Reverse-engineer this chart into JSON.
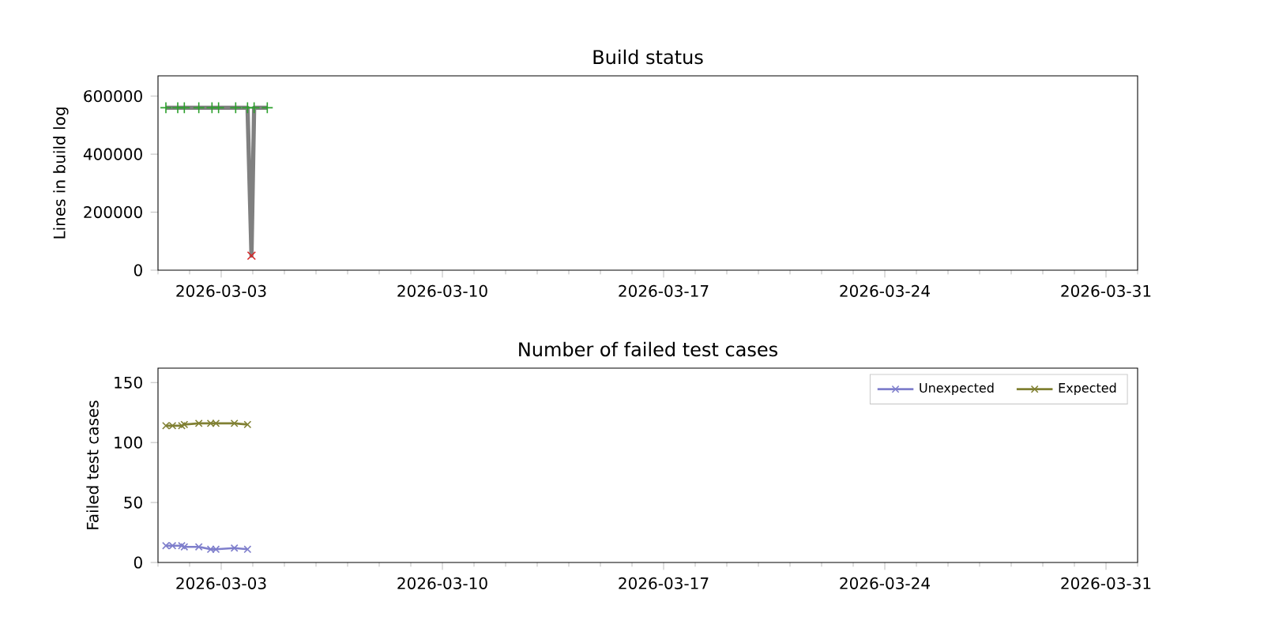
{
  "chart_data": [
    {
      "type": "line",
      "title": "Build status",
      "ylabel": "Lines in build log",
      "xlim": [
        "2026-03-01",
        "2026-04-01"
      ],
      "xticks": [
        "2026-03-03",
        "2026-03-10",
        "2026-03-17",
        "2026-03-24",
        "2026-03-31"
      ],
      "ylim": [
        0,
        670000
      ],
      "yticks": [
        0,
        200000,
        400000,
        600000
      ],
      "legend": false,
      "grid": false,
      "series": [
        {
          "color": "#808080",
          "marker": "none",
          "x": [
            "2026-03-01T06:00",
            "2026-03-01T15:00",
            "2026-03-01T20:00",
            "2026-03-02T07:00",
            "2026-03-02T17:00",
            "2026-03-02T22:00",
            "2026-03-03T11:00",
            "2026-03-03T20:00",
            "2026-03-03T23:00",
            "2026-03-04T01:00",
            "2026-03-04T11:00"
          ],
          "values": [
            560000,
            560000,
            560000,
            560000,
            560000,
            560000,
            560000,
            560000,
            50000,
            560000,
            560000
          ]
        },
        {
          "type": "scatter",
          "color": "#2ca02c",
          "marker": "plus",
          "x": [
            "2026-03-01T06:00",
            "2026-03-01T15:00",
            "2026-03-01T20:00",
            "2026-03-02T07:00",
            "2026-03-02T17:00",
            "2026-03-02T22:00",
            "2026-03-03T11:00",
            "2026-03-03T20:00",
            "2026-03-04T01:00",
            "2026-03-04T11:00"
          ],
          "values": [
            560000,
            560000,
            560000,
            560000,
            560000,
            560000,
            560000,
            560000,
            560000,
            560000
          ]
        },
        {
          "type": "scatter",
          "color": "#d62728",
          "marker": "cross",
          "x": [
            "2026-03-03T23:00"
          ],
          "values": [
            50000
          ]
        }
      ]
    },
    {
      "type": "line",
      "title": "Number of failed test cases",
      "ylabel": "Failed test cases",
      "xlim": [
        "2026-03-01",
        "2026-04-01"
      ],
      "xticks": [
        "2026-03-03",
        "2026-03-10",
        "2026-03-17",
        "2026-03-24",
        "2026-03-31"
      ],
      "ylim": [
        0,
        162
      ],
      "yticks": [
        0,
        50,
        100,
        150
      ],
      "legend": "top right",
      "grid": false,
      "series": [
        {
          "name": "Unexpected",
          "color": "#7f7fcc",
          "marker": "cross",
          "x": [
            "2026-03-01T06:00",
            "2026-03-01T11:00",
            "2026-03-01T18:00",
            "2026-03-01T20:00",
            "2026-03-02T07:00",
            "2026-03-02T16:00",
            "2026-03-02T20:00",
            "2026-03-03T10:00",
            "2026-03-03T20:00"
          ],
          "values": [
            14,
            14,
            14,
            13,
            13,
            11,
            11,
            12,
            11
          ]
        },
        {
          "name": "Expected",
          "color": "#808033",
          "marker": "cross",
          "x": [
            "2026-03-01T06:00",
            "2026-03-01T11:00",
            "2026-03-01T18:00",
            "2026-03-01T20:00",
            "2026-03-02T07:00",
            "2026-03-02T16:00",
            "2026-03-02T20:00",
            "2026-03-03T10:00",
            "2026-03-03T20:00"
          ],
          "values": [
            114,
            114,
            114,
            115,
            116,
            116,
            116,
            116,
            115
          ]
        }
      ]
    }
  ]
}
